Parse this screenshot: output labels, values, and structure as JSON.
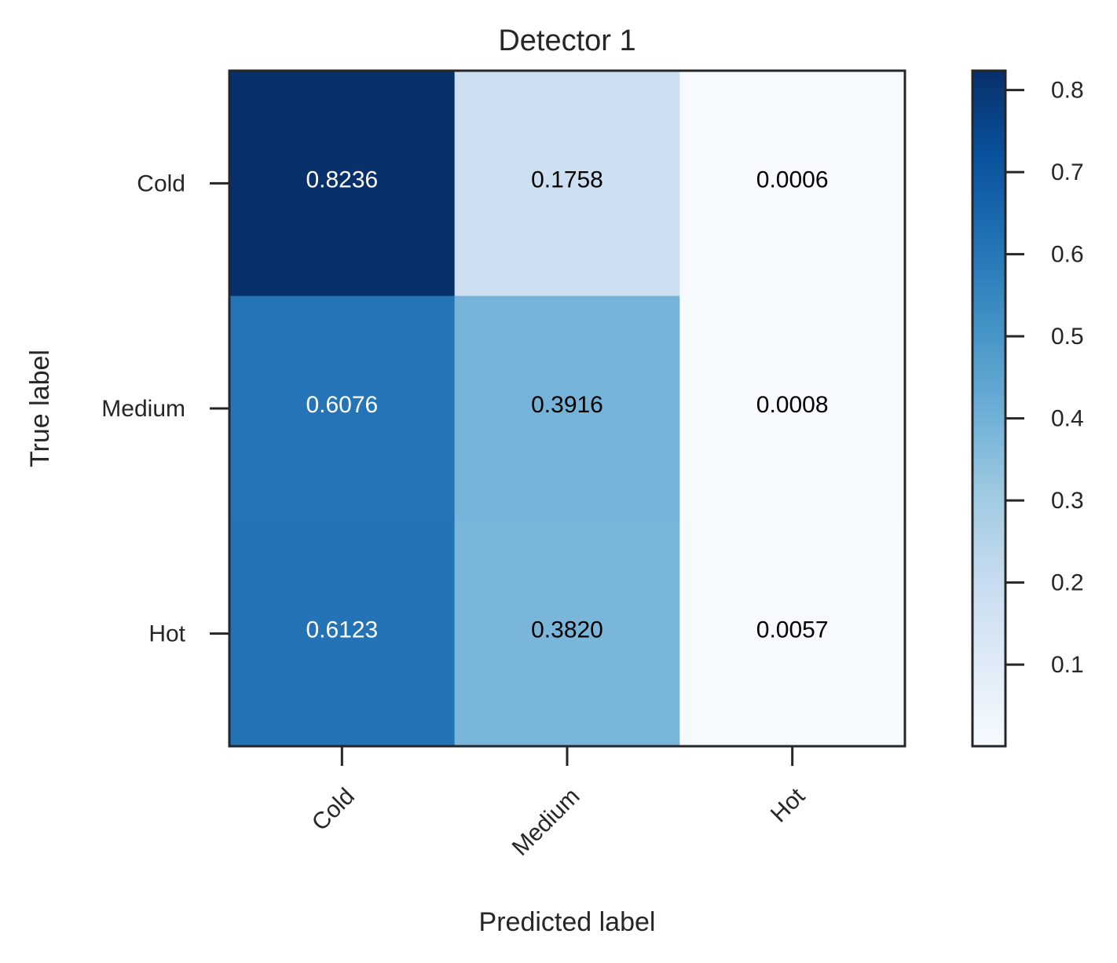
{
  "chart_data": {
    "type": "heatmap",
    "title": "Detector 1",
    "xlabel": "Predicted label",
    "ylabel": "True label",
    "x_categories": [
      "Cold",
      "Medium",
      "Hot"
    ],
    "y_categories": [
      "Cold",
      "Medium",
      "Hot"
    ],
    "values": [
      [
        0.8236,
        0.1758,
        0.0006
      ],
      [
        0.6076,
        0.3916,
        0.0008
      ],
      [
        0.6123,
        0.382,
        0.0057
      ]
    ],
    "value_labels": [
      [
        "0.8236",
        "0.1758",
        "0.0006"
      ],
      [
        "0.6076",
        "0.3916",
        "0.0008"
      ],
      [
        "0.6123",
        "0.3820",
        "0.0057"
      ]
    ],
    "colormap": "Blues",
    "colorbar": {
      "range": [
        0.0006,
        0.8236
      ],
      "ticks": [
        0.1,
        0.2,
        0.3,
        0.4,
        0.5,
        0.6,
        0.7,
        0.8
      ],
      "tick_labels": [
        "0.1",
        "0.2",
        "0.3",
        "0.4",
        "0.5",
        "0.6",
        "0.7",
        "0.8"
      ]
    },
    "x_tick_rotation": 45,
    "grid": false
  }
}
